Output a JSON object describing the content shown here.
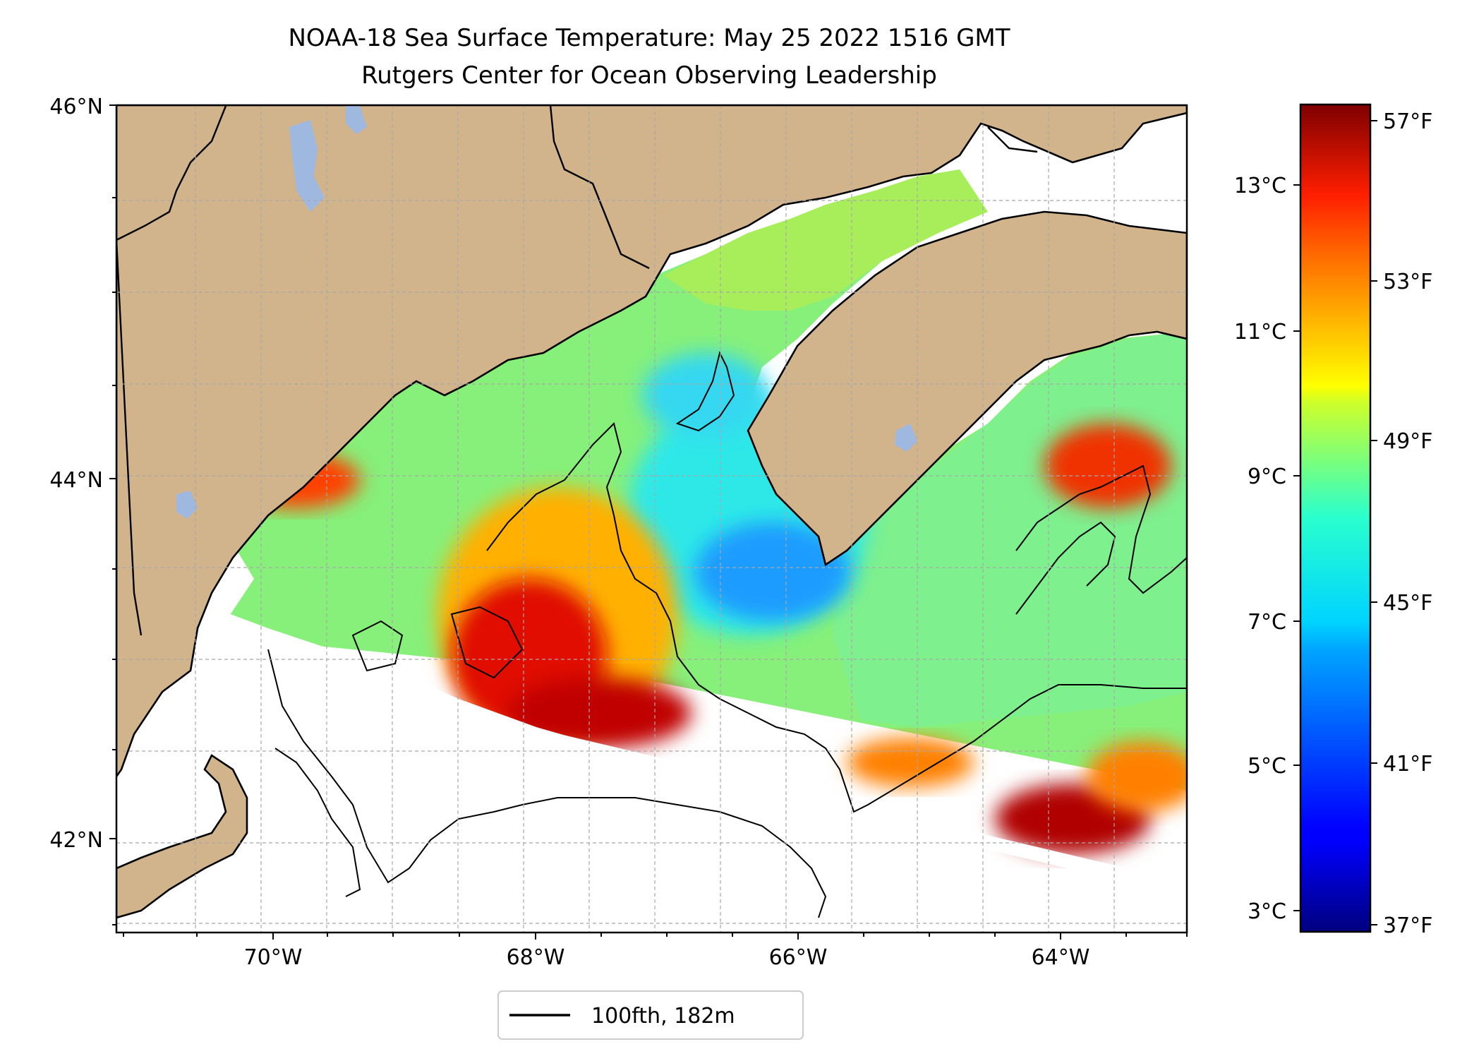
{
  "figure": {
    "title": "NOAA-18 Sea Surface Temperature: May 25 2022 1516 GMT",
    "subtitle": "Rutgers Center for Ocean Observing Leadership"
  },
  "map": {
    "lat_labels": [
      {
        "value": 46,
        "label": "46°N"
      },
      {
        "value": 44,
        "label": "44°N"
      },
      {
        "value": 42,
        "label": "42°N"
      }
    ],
    "lon_labels": [
      {
        "value": -70,
        "label": "70°W"
      },
      {
        "value": -68,
        "label": "68°W"
      },
      {
        "value": -66,
        "label": "66°W"
      },
      {
        "value": -64,
        "label": "64°W"
      }
    ],
    "extent": {
      "lon_min": -71.2,
      "lon_max": -63.0,
      "lat_min": 41.5,
      "lat_max": 46.0
    },
    "colors": {
      "land": "#d2b48c",
      "lake": "#9fb8e0",
      "coast": "#000000",
      "gridline": "#a8a8a8"
    }
  },
  "legend": {
    "entries": [
      {
        "label": "100fth, 182m",
        "color": "#000000"
      }
    ]
  },
  "colorbar": {
    "colormap": "jet",
    "range_f": [
      37,
      58
    ],
    "fahrenheit_ticks": [
      {
        "value": 57,
        "label": "57°F"
      },
      {
        "value": 53,
        "label": "53°F"
      },
      {
        "value": 49,
        "label": "49°F"
      },
      {
        "value": 45,
        "label": "45°F"
      },
      {
        "value": 41,
        "label": "41°F"
      },
      {
        "value": 37,
        "label": "37°F"
      }
    ],
    "celsius_ticks": [
      {
        "value": 13,
        "label": "13°C"
      },
      {
        "value": 11,
        "label": "11°C"
      },
      {
        "value": 9,
        "label": "9°C"
      },
      {
        "value": 7,
        "label": "7°C"
      },
      {
        "value": 5,
        "label": "5°C"
      },
      {
        "value": 3,
        "label": "3°C"
      }
    ]
  }
}
